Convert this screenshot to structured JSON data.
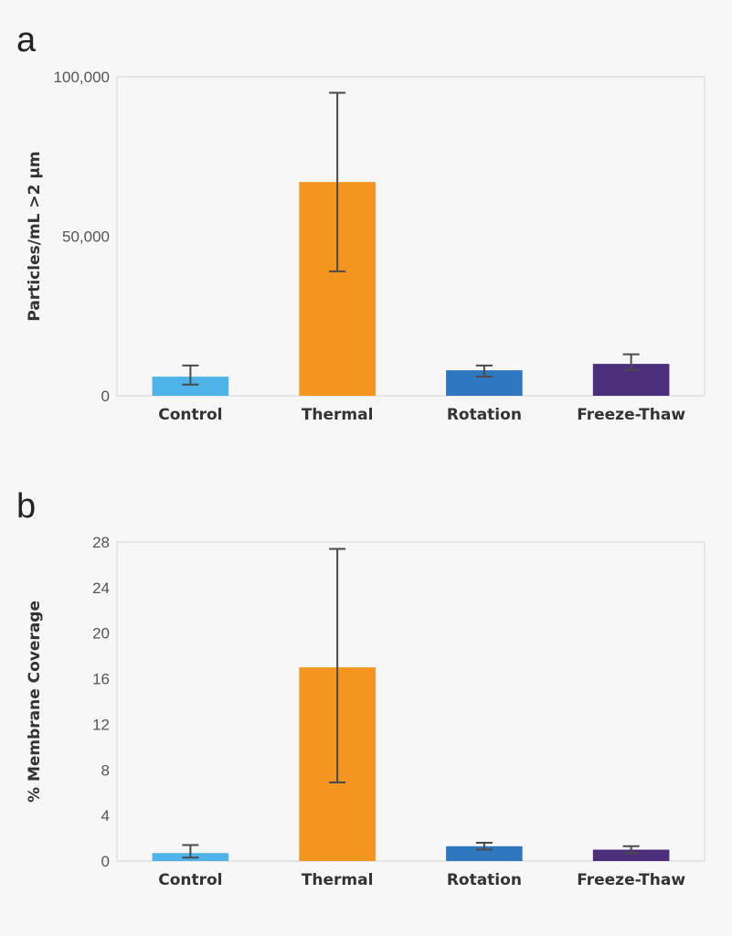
{
  "chart_data": [
    {
      "panel": "a",
      "type": "bar",
      "categories": [
        "Control",
        "Thermal",
        "Rotation",
        "Freeze-Thaw"
      ],
      "values": [
        6000,
        67000,
        8000,
        10000
      ],
      "error_low": [
        3500,
        39000,
        6000,
        8000
      ],
      "error_high": [
        9500,
        95000,
        9500,
        13000
      ],
      "colors": [
        "#4db3e8",
        "#f3951f",
        "#2f78c0",
        "#4b2f7d"
      ],
      "ylabel": "Particles/mL >2 μm",
      "ylim": [
        0,
        100000
      ],
      "yticks": [
        0,
        50000,
        100000
      ],
      "ytick_labels": [
        "0",
        "50,000",
        "100,000"
      ],
      "grid": false
    },
    {
      "panel": "b",
      "type": "bar",
      "categories": [
        "Control",
        "Thermal",
        "Rotation",
        "Freeze-Thaw"
      ],
      "values": [
        0.7,
        17.0,
        1.3,
        1.0
      ],
      "error_low": [
        0.3,
        6.9,
        1.0,
        0.7
      ],
      "error_high": [
        1.4,
        27.4,
        1.6,
        1.3
      ],
      "colors": [
        "#4db3e8",
        "#f3951f",
        "#2f78c0",
        "#4b2f7d"
      ],
      "ylabel": "% Membrane Coverage",
      "ylim": [
        0,
        28
      ],
      "yticks": [
        0,
        4,
        8,
        12,
        16,
        20,
        24,
        28
      ],
      "ytick_labels": [
        "0",
        "4",
        "8",
        "12",
        "16",
        "20",
        "24",
        "28"
      ],
      "grid": false
    }
  ]
}
